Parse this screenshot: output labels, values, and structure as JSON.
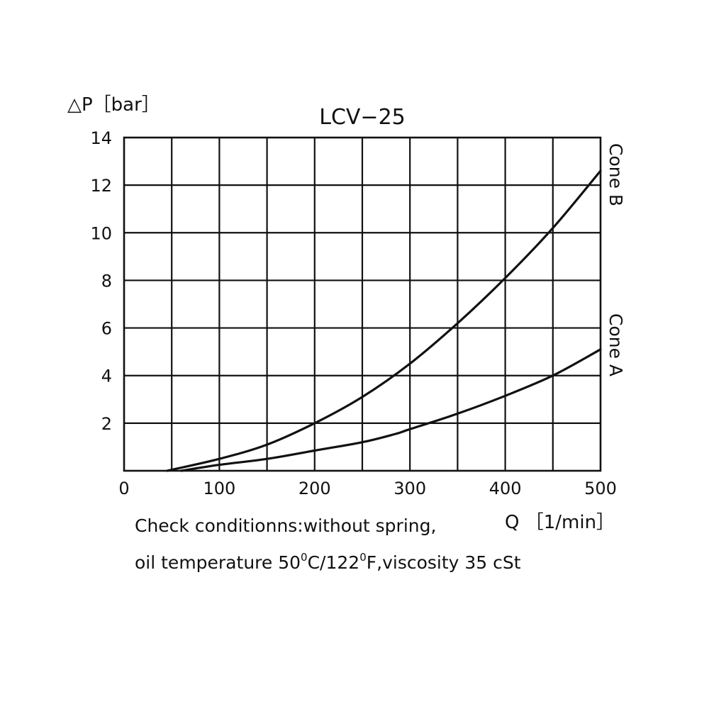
{
  "chart_data": {
    "type": "line",
    "title": "LCV−25",
    "ylabel": "△P［bar］",
    "xlabel": "Q ［1/min］",
    "xlim": [
      0,
      500
    ],
    "ylim": [
      0,
      14
    ],
    "x_ticks": [
      "0",
      "100",
      "200",
      "300",
      "400",
      "500"
    ],
    "y_ticks": [
      "2",
      "4",
      "6",
      "8",
      "10",
      "12",
      "14"
    ],
    "grid": true,
    "series": [
      {
        "name": "Cone B",
        "x": [
          45,
          100,
          150,
          200,
          250,
          300,
          350,
          400,
          450,
          500
        ],
        "y": [
          0.0,
          0.5,
          1.1,
          2.0,
          3.1,
          4.5,
          6.2,
          8.1,
          10.2,
          12.6
        ]
      },
      {
        "name": "Cone A",
        "x": [
          60,
          100,
          150,
          200,
          250,
          285,
          300,
          350,
          400,
          450,
          500
        ],
        "y": [
          0.0,
          0.25,
          0.5,
          0.85,
          1.2,
          1.55,
          1.75,
          2.4,
          3.15,
          4.0,
          5.1
        ]
      }
    ]
  },
  "notes": {
    "line1": "Check conditionns:without spring,",
    "line2_a": "oil temperature 50",
    "line2_sup1": "0",
    "line2_b": "C/122",
    "line2_sup2": "0",
    "line2_c": "F,viscosity 35 cSt"
  }
}
